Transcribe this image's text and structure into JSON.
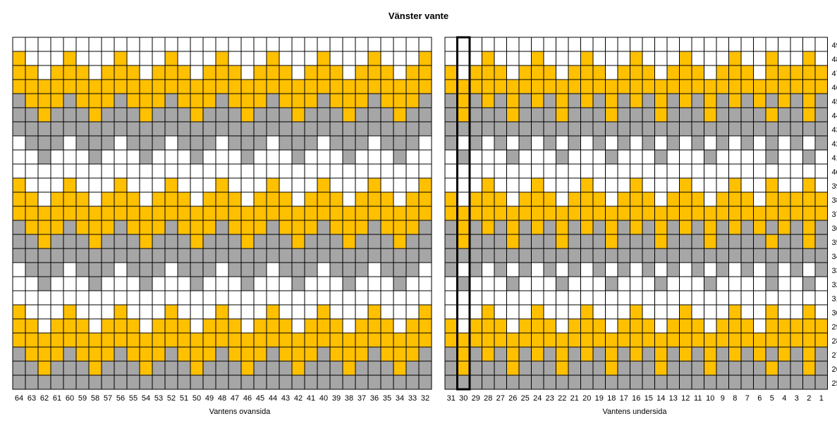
{
  "title": "Vänster vante",
  "colors": {
    "yellow": "#FFC000",
    "grey": "#A6A6A6",
    "white": "#FFFFFF",
    "gridline": "#000000"
  },
  "left_panel": {
    "caption": "Vantens ovansida",
    "columns": [
      "64",
      "63",
      "62",
      "61",
      "60",
      "59",
      "58",
      "57",
      "56",
      "55",
      "54",
      "53",
      "52",
      "51",
      "50",
      "49",
      "48",
      "47",
      "46",
      "45",
      "44",
      "43",
      "42",
      "41",
      "40",
      "39",
      "38",
      "37",
      "36",
      "35",
      "34",
      "33",
      "32"
    ]
  },
  "right_panel": {
    "caption": "Vantens undersida",
    "columns": [
      "31",
      "30",
      "29",
      "28",
      "27",
      "26",
      "25",
      "24",
      "23",
      "22",
      "21",
      "20",
      "19",
      "18",
      "17",
      "16",
      "15",
      "14",
      "13",
      "12",
      "11",
      "10",
      "9",
      "8",
      "7",
      "6",
      "5",
      "4",
      "3",
      "2",
      "1"
    ],
    "highlighted_column": "30"
  },
  "rows": [
    "49",
    "48",
    "47",
    "46",
    "45",
    "44",
    "43",
    "42",
    "41",
    "40",
    "39",
    "38",
    "37",
    "36",
    "35",
    "34",
    "33",
    "32",
    "31",
    "30",
    "29",
    "28",
    "27",
    "26",
    "25"
  ],
  "chart_data": {
    "type": "heatmap",
    "title": "Vänster vante",
    "legend": "none",
    "value_key": {
      "W": "white",
      "Y": "yellow",
      "G": "grey"
    },
    "left_rows": [
      "WWWWWWWWWWWWWWWWWWWWWWWWWWWWWWWWW",
      "YWWWYWWWYWWWYWWWYWWWYWWWYWWWYWWWY",
      "YYWYYYWYYYWYYYWYYYWYYYWYYYWYYYWYY",
      "YYYYYYYYYYYYYYYYYYYYYYYYYYYYYYYYY",
      "GYYYGYYYGYYYGYYYGYYYGYYYGYYYGYYYG",
      "GGYGGGYGGGYGGGYGGGYGGGYGGGYGGGYGG",
      "GGGGGGGGGGGGGGGGGGGGGGGGGGGGGGGGG",
      "WGGGWGGGWGGGWGGGWGGGWGGGWGGGWGGGW",
      "WWGWWWGWWWGWWWGWWWGWWWGWWWGWWWGWW",
      "WWWWWWWWWWWWWWWWWWWWWWWWWWWWWWWWW",
      "YWWWYWWWYWWWYWWWYWWWYWWWYWWWYWWWY",
      "YYWYYYWYYYWYYYWYYYWYYYWYYYWYYYWYY",
      "YYYYYYYYYYYYYYYYYYYYYYYYYYYYYYYYY",
      "GYYYGYYYGYYYGYYYGYYYGYYYGYYYGYYYG",
      "GGYGGGYGGGYGGGYGGGYGGGYGGGYGGGYGG",
      "GGGGGGGGGGGGGGGGGGGGGGGGGGGGGGGGG",
      "WGGGWGGGWGGGWGGGWGGGWGGGWGGGWGGGW",
      "WWGWWWGWWWGWWWGWWWGWWWGWWWGWWWGWW",
      "WWWWWWWWWWWWWWWWWWWWWWWWWWWWWWWWW",
      "YWWWYWWWYWWWYWWWYWWWYWWWYWWWYWWWY",
      "YYWYYYWYYYWYYYWYYYWYYYWYYYWYYYWYY",
      "YYYYYYYYYYYYYYYYYYYYYYYYYYYYYYYYY",
      "GYYYGYYYGYYYGYYYGYYYGYYYGYYYGYYYG",
      "GGYGGGYGGGYGGGYGGGYGGGYGGGYGGGYGG",
      "GGGGGGGGGGGGGGGGGGGGGGGGGGGGGGGGG"
    ],
    "right_rows": [
      "WWWWWWWWWWWWWWWWWWWWWWWWWWWWWWW",
      "WWWYWWWYWWWYWWWYWWWYWWWYWWYWWYW",
      "YWYYYWYYYWYYYWYYYWYYYWYYYWYYYYY",
      "YYYYYYYYYYYYYYYYYYYYYYYYYYYYYYY",
      "GYGYGYGYGYGYGYGYGYGYGYGYGYGYGYG",
      "GYGGGYGGGYGGGYGGGYGGGYGGGGYGGYG",
      "GGGGGGGGGGGGGGGGGGGGGGGGGGGGGGG",
      "GWGWGWGWGWGWGWGWGWGWGWGWGWGWGWG",
      "WGWWWGWWWGWWWGWWWGWWWGWWWWGWWGW",
      "WWWWWWWWWWWWWWWWWWWWWWWWWWWWWWW",
      "WWWYWWWYWWWYWWWYWWWYWWWYWWYWWYW",
      "YWYYYWYYYWYYYWYYYWYYYWYYYWYYYYY",
      "YYYYYYYYYYYYYYYYYYYYYYYYYYYYYYY",
      "GYGYGYGYGYGYGYGYGYGYGYGYGYGYGYG",
      "GYGGGYGGGYGGGYGGGYGGGYGGGGYGGYG",
      "GGGGGGGGGGGGGGGGGGGGGGGGGGGGGGG",
      "GWGWGWGWGWGWGWGWGWGWGWGWGWGWGWG",
      "WGWWWGWWWGWWWGWWWGWWWGWWWWGWWGW",
      "WWWWWWWWWWWWWWWWWWWWWWWWWWWWWWW",
      "WWWYWWWYWWWYWWWYWWWYWWWYWWYWWYW",
      "YWYYYWYYYWYYYWYYYWYYYWYYYWYYYYY",
      "YYYYYYYYYYYYYYYYYYYYYYYYYYYYYYY",
      "GYGYGYGYGYGYGYGYGYGYGYGYGYGYGYG",
      "GYGGGYGGGYGGGYGGGYGGGYGGGGYGGYG",
      "GGGGGGGGGGGGGGGGGGGGGGGGGGGGGGG"
    ]
  }
}
